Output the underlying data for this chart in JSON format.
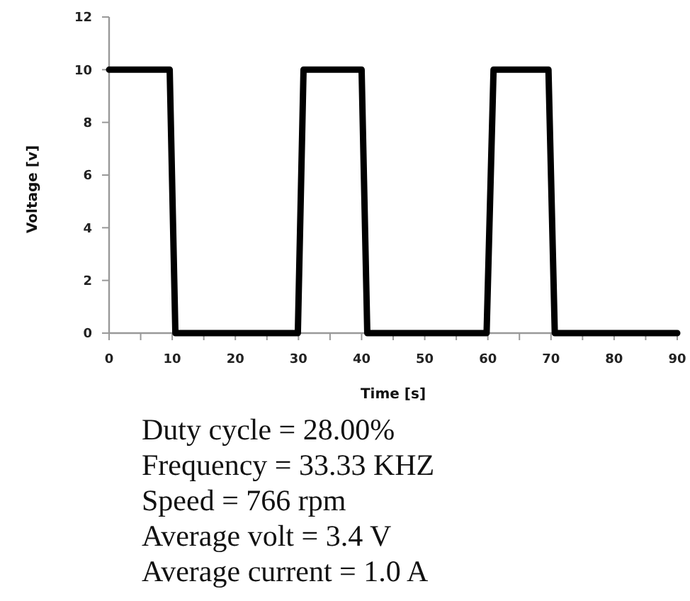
{
  "chart_data": {
    "type": "line",
    "xlabel": "Time [s]",
    "ylabel": "Voltage [v]",
    "x": [
      0,
      9.6,
      10.5,
      29.9,
      30.8,
      40,
      40.9,
      59.8,
      60.9,
      69.6,
      70.6,
      90
    ],
    "series": [
      {
        "color": "#000000",
        "values": [
          10,
          10,
          0,
          0,
          10,
          10,
          0,
          0,
          10,
          10,
          0,
          0
        ]
      }
    ],
    "xlim": [
      0,
      90
    ],
    "xticks": [
      0,
      {
        "value": 5,
        "label": null
      },
      10,
      {
        "value": 15,
        "label": null
      },
      20,
      {
        "value": 25,
        "label": null
      },
      30,
      {
        "value": 35,
        "label": null
      },
      40,
      {
        "value": 45,
        "label": null
      },
      50,
      {
        "value": 55,
        "label": null
      },
      60,
      {
        "value": 65,
        "label": null
      },
      70,
      {
        "value": 75,
        "label": null
      },
      80,
      {
        "value": 85,
        "label": null
      },
      90
    ],
    "ylim": [
      0,
      12
    ],
    "yticks": [
      0,
      2,
      4,
      6,
      8,
      10,
      12
    ],
    "grid": false,
    "marker": "none",
    "line_style": "solid",
    "annotations": [
      "Duty cycle = 28.00%",
      "Frequency = 33.33 KHZ",
      "Speed = 766 rpm",
      "Average volt = 3.4 V",
      "Average current = 1.0 A"
    ]
  }
}
